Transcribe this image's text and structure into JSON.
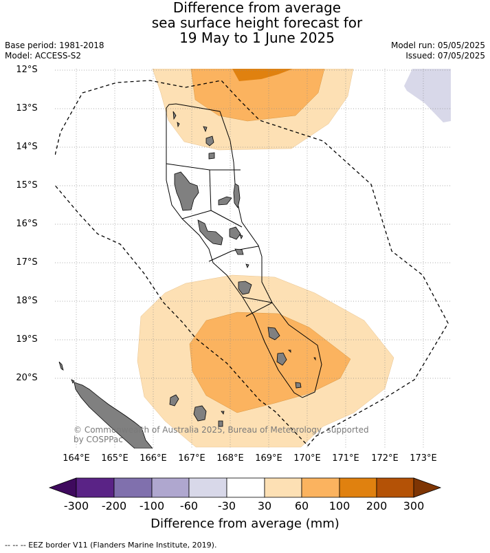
{
  "title": {
    "line1": "Difference from average",
    "line2": "sea surface height forecast for",
    "line3": "19 May to 1 June 2025"
  },
  "meta": {
    "base_period": "Base period: 1981-2018",
    "model": "Model: ACCESS-S2",
    "model_run": "Model run: 05/05/2025",
    "issued": "Issued: 07/05/2025"
  },
  "axes": {
    "lat_labels": [
      "12°S",
      "13°S",
      "14°S",
      "15°S",
      "16°S",
      "17°S",
      "18°S",
      "19°S",
      "20°S"
    ],
    "lon_labels": [
      "164°E",
      "165°E",
      "166°E",
      "167°E",
      "168°E",
      "169°E",
      "170°E",
      "171°E",
      "172°E",
      "173°E"
    ]
  },
  "copyright": "© Commonwealth of Australia 2025, Bureau of Meteorology, supported by COSPPac",
  "colorbar": {
    "tick_labels": [
      "-300",
      "-200",
      "-100",
      "-60",
      "-30",
      "30",
      "60",
      "100",
      "200",
      "300"
    ],
    "colors": [
      "#3f0a5e",
      "#5a2386",
      "#8070ad",
      "#afa7cf",
      "#d8d8e9",
      "#ffffff",
      "#fde0b4",
      "#fbb35f",
      "#e0810f",
      "#b45206",
      "#7e3504"
    ],
    "title": "Difference from average (mm)"
  },
  "footnote": "--  --  -- EEZ border V11 (Flanders Marine Institute, 2019).",
  "map": {
    "lat_range": [
      -21.8,
      -11.9
    ],
    "lon_range": [
      163.4,
      173.8
    ],
    "gridlines": true,
    "land_color": "#808080",
    "ocean_color": "#ffffff"
  }
}
